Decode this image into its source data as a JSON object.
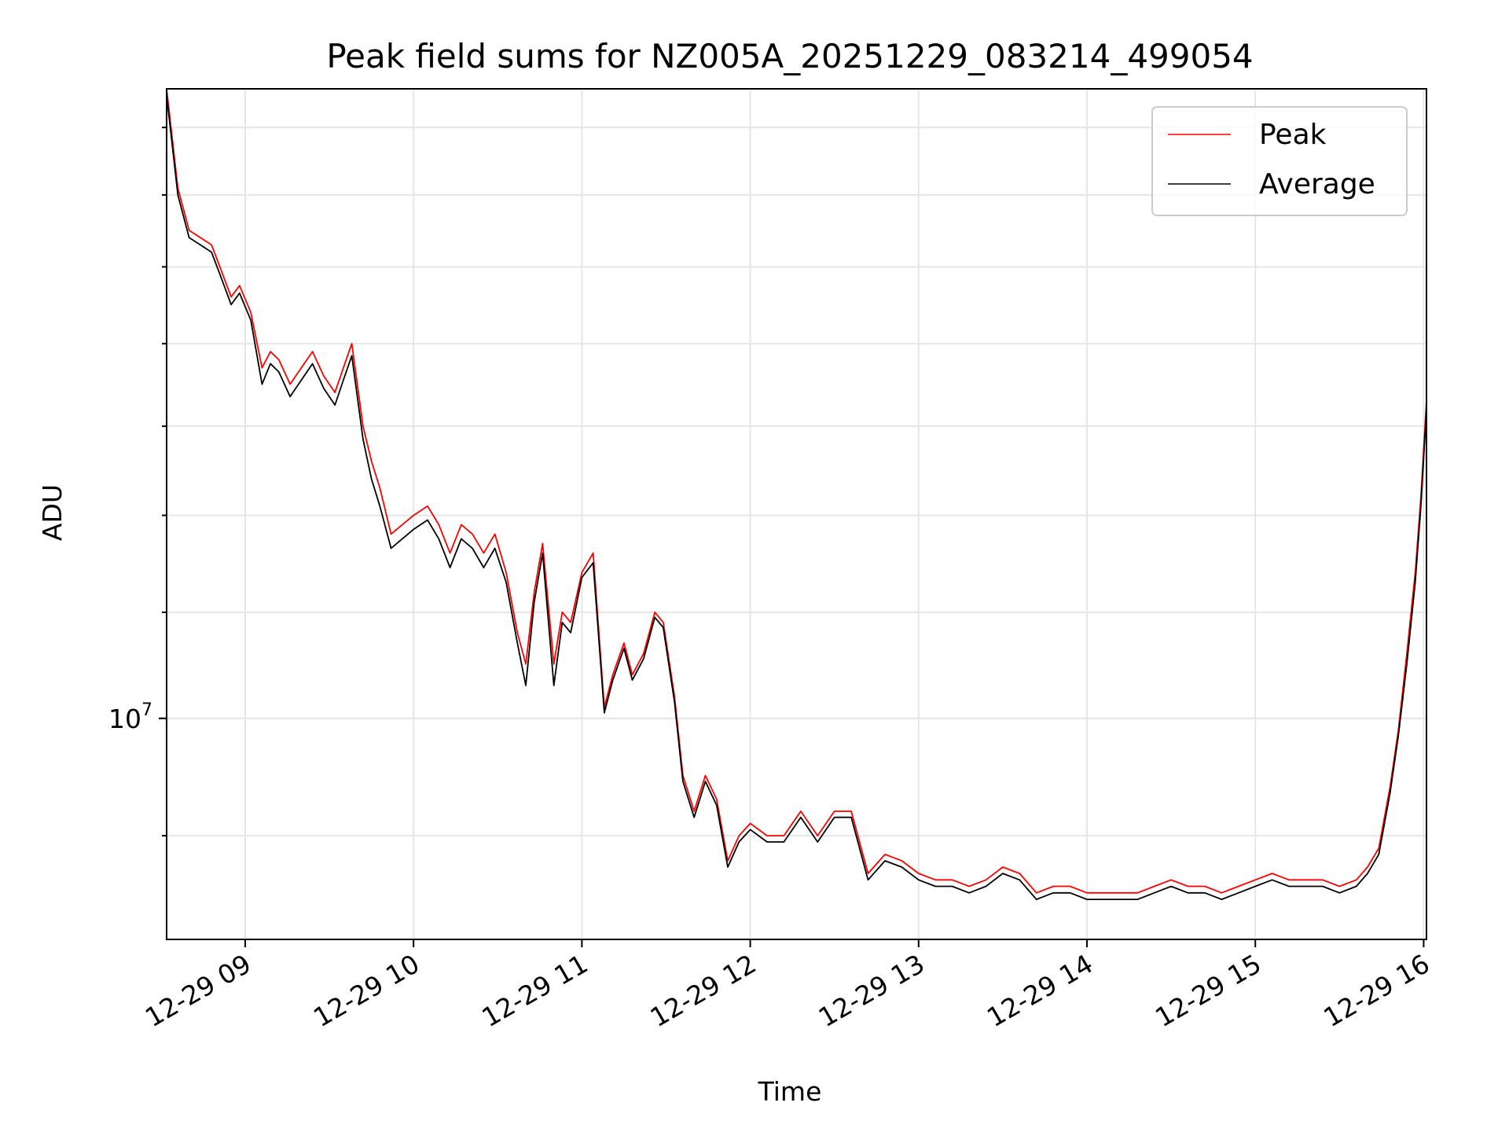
{
  "chart_data": {
    "type": "line",
    "title": "Peak field sums for NZ005A_20251229_083214_499054",
    "xlabel": "Time",
    "ylabel": "ADU",
    "y_scale": "log",
    "y_tick_label": {
      "base": "10",
      "exponent": "7"
    },
    "xlim": [
      "2025-12-29 08:32",
      "2025-12-29 16:01"
    ],
    "ylim": [
      8200000,
      17600000
    ],
    "x_ticks": [
      "12-29 09",
      "12-29 10",
      "12-29 11",
      "12-29 12",
      "12-29 13",
      "12-29 14",
      "12-29 15",
      "12-29 16"
    ],
    "grid": true,
    "legend_position": "top-right",
    "series": [
      {
        "name": "Peak",
        "color": "#ff0000",
        "x": [
          "2025-12-29 08:32",
          "2025-12-29 08:36",
          "2025-12-29 08:40",
          "2025-12-29 08:44",
          "2025-12-29 08:48",
          "2025-12-29 08:51",
          "2025-12-29 08:55",
          "2025-12-29 08:58",
          "2025-12-29 09:02",
          "2025-12-29 09:06",
          "2025-12-29 09:09",
          "2025-12-29 09:12",
          "2025-12-29 09:16",
          "2025-12-29 09:20",
          "2025-12-29 09:24",
          "2025-12-29 09:28",
          "2025-12-29 09:32",
          "2025-12-29 09:35",
          "2025-12-29 09:38",
          "2025-12-29 09:42",
          "2025-12-29 09:45",
          "2025-12-29 09:48",
          "2025-12-29 09:52",
          "2025-12-29 09:56",
          "2025-12-29 10:00",
          "2025-12-29 10:05",
          "2025-12-29 10:09",
          "2025-12-29 10:13",
          "2025-12-29 10:17",
          "2025-12-29 10:21",
          "2025-12-29 10:25",
          "2025-12-29 10:29",
          "2025-12-29 10:33",
          "2025-12-29 10:37",
          "2025-12-29 10:40",
          "2025-12-29 10:43",
          "2025-12-29 10:46",
          "2025-12-29 10:50",
          "2025-12-29 10:53",
          "2025-12-29 10:56",
          "2025-12-29 11:00",
          "2025-12-29 11:04",
          "2025-12-29 11:08",
          "2025-12-29 11:11",
          "2025-12-29 11:15",
          "2025-12-29 11:18",
          "2025-12-29 11:22",
          "2025-12-29 11:26",
          "2025-12-29 11:29",
          "2025-12-29 11:33",
          "2025-12-29 11:36",
          "2025-12-29 11:40",
          "2025-12-29 11:44",
          "2025-12-29 11:48",
          "2025-12-29 11:52",
          "2025-12-29 11:56",
          "2025-12-29 12:00",
          "2025-12-29 12:06",
          "2025-12-29 12:12",
          "2025-12-29 12:18",
          "2025-12-29 12:24",
          "2025-12-29 12:30",
          "2025-12-29 12:36",
          "2025-12-29 12:42",
          "2025-12-29 12:48",
          "2025-12-29 12:54",
          "2025-12-29 13:00",
          "2025-12-29 13:06",
          "2025-12-29 13:12",
          "2025-12-29 13:18",
          "2025-12-29 13:24",
          "2025-12-29 13:30",
          "2025-12-29 13:36",
          "2025-12-29 13:42",
          "2025-12-29 13:48",
          "2025-12-29 13:54",
          "2025-12-29 14:00",
          "2025-12-29 14:06",
          "2025-12-29 14:12",
          "2025-12-29 14:18",
          "2025-12-29 14:24",
          "2025-12-29 14:30",
          "2025-12-29 14:36",
          "2025-12-29 14:42",
          "2025-12-29 14:48",
          "2025-12-29 14:54",
          "2025-12-29 15:00",
          "2025-12-29 15:06",
          "2025-12-29 15:12",
          "2025-12-29 15:18",
          "2025-12-29 15:24",
          "2025-12-29 15:30",
          "2025-12-29 15:36",
          "2025-12-29 15:40",
          "2025-12-29 15:44",
          "2025-12-29 15:48",
          "2025-12-29 15:51",
          "2025-12-29 15:54",
          "2025-12-29 15:57",
          "2025-12-29 15:59",
          "2025-12-29 16:01"
        ],
        "values": [
          17600000,
          16100000,
          15500000,
          15400000,
          15300000,
          15000000,
          14600000,
          14750000,
          14400000,
          13700000,
          13900000,
          13800000,
          13500000,
          13700000,
          13900000,
          13600000,
          13400000,
          13700000,
          14000000,
          13000000,
          12600000,
          12300000,
          11800000,
          11900000,
          12000000,
          12100000,
          11900000,
          11600000,
          11900000,
          11800000,
          11600000,
          11800000,
          11400000,
          10800000,
          10500000,
          11200000,
          11700000,
          10500000,
          11000000,
          10900000,
          11400000,
          11600000,
          10100000,
          10400000,
          10700000,
          10400000,
          10600000,
          11000000,
          10900000,
          10200000,
          9500000,
          9200000,
          9500000,
          9300000,
          8800000,
          9000000,
          9100000,
          9000000,
          9000000,
          9200000,
          9000000,
          9200000,
          9200000,
          8700000,
          8850000,
          8800000,
          8700000,
          8650000,
          8650000,
          8600000,
          8650000,
          8750000,
          8700000,
          8550000,
          8600000,
          8600000,
          8550000,
          8550000,
          8550000,
          8550000,
          8600000,
          8650000,
          8600000,
          8600000,
          8550000,
          8600000,
          8650000,
          8700000,
          8650000,
          8650000,
          8650000,
          8600000,
          8650000,
          8750000,
          8900000,
          9400000,
          9900000,
          10600000,
          11400000,
          12200000,
          13300000
        ]
      },
      {
        "name": "Average",
        "color": "#000000",
        "x": [
          "2025-12-29 08:32",
          "2025-12-29 08:36",
          "2025-12-29 08:40",
          "2025-12-29 08:44",
          "2025-12-29 08:48",
          "2025-12-29 08:51",
          "2025-12-29 08:55",
          "2025-12-29 08:58",
          "2025-12-29 09:02",
          "2025-12-29 09:06",
          "2025-12-29 09:09",
          "2025-12-29 09:12",
          "2025-12-29 09:16",
          "2025-12-29 09:20",
          "2025-12-29 09:24",
          "2025-12-29 09:28",
          "2025-12-29 09:32",
          "2025-12-29 09:35",
          "2025-12-29 09:38",
          "2025-12-29 09:42",
          "2025-12-29 09:45",
          "2025-12-29 09:48",
          "2025-12-29 09:52",
          "2025-12-29 09:56",
          "2025-12-29 10:00",
          "2025-12-29 10:05",
          "2025-12-29 10:09",
          "2025-12-29 10:13",
          "2025-12-29 10:17",
          "2025-12-29 10:21",
          "2025-12-29 10:25",
          "2025-12-29 10:29",
          "2025-12-29 10:33",
          "2025-12-29 10:37",
          "2025-12-29 10:40",
          "2025-12-29 10:43",
          "2025-12-29 10:46",
          "2025-12-29 10:50",
          "2025-12-29 10:53",
          "2025-12-29 10:56",
          "2025-12-29 11:00",
          "2025-12-29 11:04",
          "2025-12-29 11:08",
          "2025-12-29 11:11",
          "2025-12-29 11:15",
          "2025-12-29 11:18",
          "2025-12-29 11:22",
          "2025-12-29 11:26",
          "2025-12-29 11:29",
          "2025-12-29 11:33",
          "2025-12-29 11:36",
          "2025-12-29 11:40",
          "2025-12-29 11:44",
          "2025-12-29 11:48",
          "2025-12-29 11:52",
          "2025-12-29 11:56",
          "2025-12-29 12:00",
          "2025-12-29 12:06",
          "2025-12-29 12:12",
          "2025-12-29 12:18",
          "2025-12-29 12:24",
          "2025-12-29 12:30",
          "2025-12-29 12:36",
          "2025-12-29 12:42",
          "2025-12-29 12:48",
          "2025-12-29 12:54",
          "2025-12-29 13:00",
          "2025-12-29 13:06",
          "2025-12-29 13:12",
          "2025-12-29 13:18",
          "2025-12-29 13:24",
          "2025-12-29 13:30",
          "2025-12-29 13:36",
          "2025-12-29 13:42",
          "2025-12-29 13:48",
          "2025-12-29 13:54",
          "2025-12-29 14:00",
          "2025-12-29 14:06",
          "2025-12-29 14:12",
          "2025-12-29 14:18",
          "2025-12-29 14:24",
          "2025-12-29 14:30",
          "2025-12-29 14:36",
          "2025-12-29 14:42",
          "2025-12-29 14:48",
          "2025-12-29 14:54",
          "2025-12-29 15:00",
          "2025-12-29 15:06",
          "2025-12-29 15:12",
          "2025-12-29 15:18",
          "2025-12-29 15:24",
          "2025-12-29 15:30",
          "2025-12-29 15:36",
          "2025-12-29 15:40",
          "2025-12-29 15:44",
          "2025-12-29 15:48",
          "2025-12-29 15:51",
          "2025-12-29 15:54",
          "2025-12-29 15:57",
          "2025-12-29 15:59",
          "2025-12-29 16:01"
        ],
        "values": [
          17500000,
          16000000,
          15400000,
          15300000,
          15200000,
          14900000,
          14500000,
          14650000,
          14300000,
          13500000,
          13750000,
          13650000,
          13350000,
          13550000,
          13750000,
          13450000,
          13250000,
          13550000,
          13850000,
          12850000,
          12400000,
          12100000,
          11650000,
          11750000,
          11850000,
          11950000,
          11750000,
          11450000,
          11750000,
          11650000,
          11450000,
          11650000,
          11300000,
          10700000,
          10300000,
          11100000,
          11600000,
          10300000,
          10900000,
          10800000,
          11350000,
          11500000,
          10050000,
          10350000,
          10650000,
          10350000,
          10550000,
          10950000,
          10850000,
          10150000,
          9450000,
          9150000,
          9450000,
          9250000,
          8750000,
          8950000,
          9050000,
          8950000,
          8950000,
          9150000,
          8950000,
          9150000,
          9150000,
          8650000,
          8800000,
          8750000,
          8650000,
          8600000,
          8600000,
          8550000,
          8600000,
          8700000,
          8650000,
          8500000,
          8550000,
          8550000,
          8500000,
          8500000,
          8500000,
          8500000,
          8550000,
          8600000,
          8550000,
          8550000,
          8500000,
          8550000,
          8600000,
          8650000,
          8600000,
          8600000,
          8600000,
          8550000,
          8600000,
          8700000,
          8850000,
          9350000,
          9850000,
          10500000,
          11300000,
          12100000,
          13200000
        ]
      }
    ]
  }
}
